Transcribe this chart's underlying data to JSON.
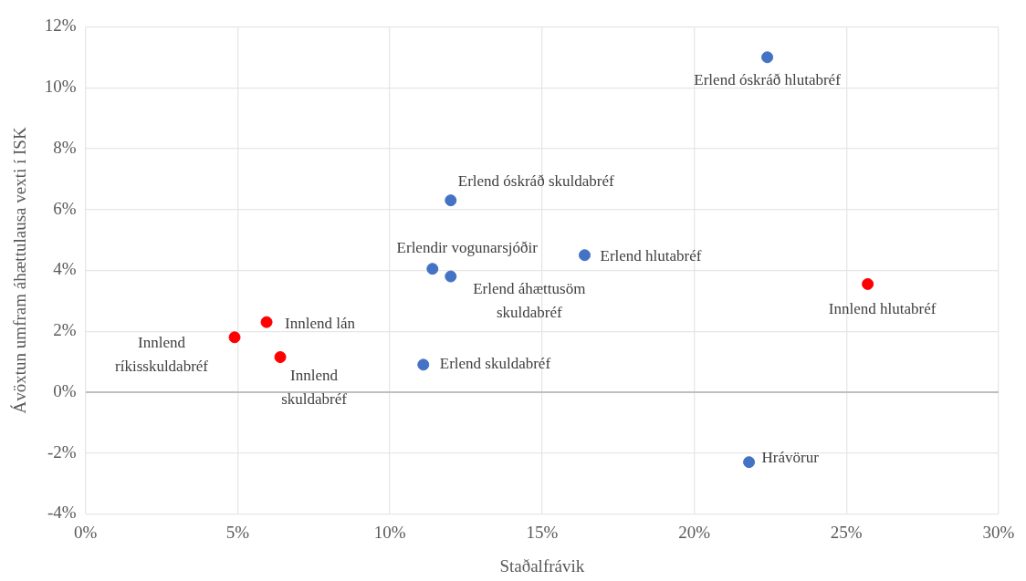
{
  "chart_data": {
    "type": "scatter",
    "xlabel": "Staðalfrávik",
    "ylabel": "Ávöxtun umfram áhættulausa vexti í ISK",
    "series": [
      {
        "color": "#4472c4",
        "x": [
          22.4,
          12.0,
          16.4,
          11.4,
          12.0,
          11.1,
          21.8
        ],
        "values": [
          11.0,
          6.3,
          4.5,
          4.05,
          3.8,
          0.9,
          -2.3
        ]
      },
      {
        "color": "#ff0000",
        "x": [
          25.7,
          5.95,
          4.9,
          6.4
        ],
        "values": [
          3.55,
          2.3,
          1.8,
          1.15
        ]
      }
    ],
    "annotations": [
      {
        "text": "Erlend óskráð hlutabréf",
        "x": 22.4,
        "y": 11.0
      },
      {
        "text": "Erlend óskráð skuldabréf",
        "x": 12.0,
        "y": 6.3
      },
      {
        "text": "Erlend hlutabréf",
        "x": 16.4,
        "y": 4.5
      },
      {
        "text": "Erlendir vogunarsjóðir",
        "x": 11.4,
        "y": 4.05
      },
      {
        "text": "Erlend áhættusöm skuldabréf",
        "x": 12.0,
        "y": 3.8
      },
      {
        "text": "Erlend skuldabréf",
        "x": 11.1,
        "y": 0.9
      },
      {
        "text": "Hrávörur",
        "x": 21.8,
        "y": -2.3
      },
      {
        "text": "Innlend hlutabréf",
        "x": 25.7,
        "y": 3.55
      },
      {
        "text": "Innlend lán",
        "x": 5.95,
        "y": 2.3
      },
      {
        "text": "Innlend ríkisskuldabréf",
        "x": 4.9,
        "y": 1.8
      },
      {
        "text": "Innlend skuldabréf",
        "x": 6.4,
        "y": 1.15
      }
    ],
    "xlim": [
      0,
      30
    ],
    "xticks": [
      {
        "value": 0,
        "label": "0%"
      },
      {
        "value": 5,
        "label": "5%"
      },
      {
        "value": 10,
        "label": "10%"
      },
      {
        "value": 15,
        "label": "15%"
      },
      {
        "value": 20,
        "label": "20%"
      },
      {
        "value": 25,
        "label": "25%"
      },
      {
        "value": 30,
        "label": "30%"
      }
    ],
    "ylim": [
      -4,
      12
    ],
    "yticks": [
      {
        "value": -4,
        "label": "-4%"
      },
      {
        "value": -2,
        "label": "-2%"
      },
      {
        "value": 0,
        "label": "0%"
      },
      {
        "value": 2,
        "label": "2%"
      },
      {
        "value": 4,
        "label": "4%"
      },
      {
        "value": 6,
        "label": "6%"
      },
      {
        "value": 8,
        "label": "8%"
      },
      {
        "value": 10,
        "label": "10%"
      },
      {
        "value": 12,
        "label": "12%"
      }
    ],
    "grid": true,
    "legend": false,
    "marker": "circle"
  }
}
